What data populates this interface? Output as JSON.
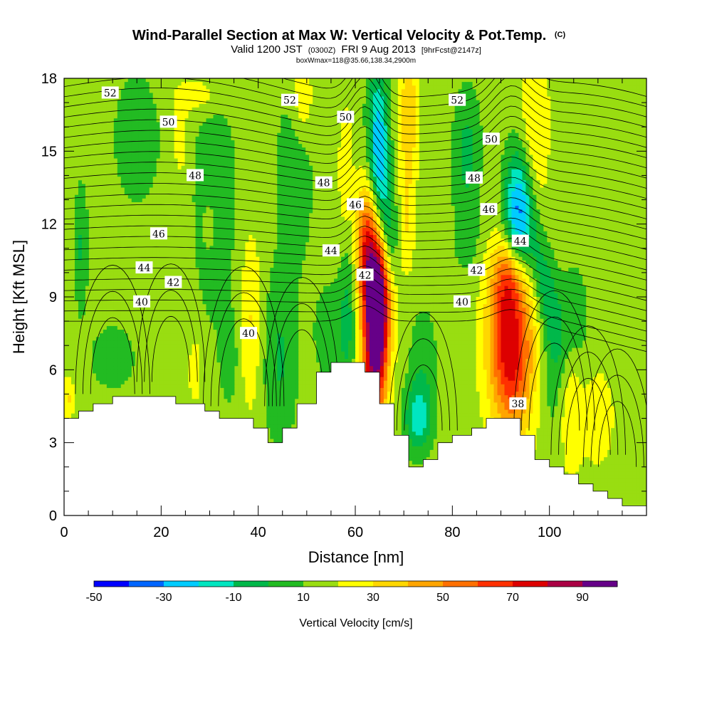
{
  "chart_data": {
    "type": "heatmap",
    "title": "Wind-Parallel Section at Max W: Vertical Velocity & Pot.Temp.",
    "title_mark": "(C)",
    "subtitle": {
      "valid": "Valid 1200 JST",
      "utc": "(0300Z)",
      "date": "FRI 9 Aug 2013",
      "forecast": "[9hrFcst@2147z]"
    },
    "subtitle2": "boxWmax=118@35.66,138.34,2900m",
    "xlabel": "Distance [nm]",
    "ylabel": "Height [Kft MSL]",
    "xlim": [
      0,
      120
    ],
    "ylim": [
      0,
      18
    ],
    "x_ticks": [
      "0",
      "20",
      "40",
      "60",
      "80",
      "100"
    ],
    "y_ticks": [
      "0",
      "3",
      "6",
      "9",
      "12",
      "15",
      "18"
    ],
    "colorbar": {
      "label": "Vertical Velocity [cm/s]",
      "tick_labels": [
        "-50",
        "-30",
        "-10",
        "10",
        "30",
        "50",
        "70",
        "90"
      ],
      "colors": [
        "#0000ff",
        "#0066ff",
        "#00ccff",
        "#00e6c0",
        "#00b84a",
        "#22bb22",
        "#99dd11",
        "#ffff00",
        "#ffd700",
        "#ffa500",
        "#ff7000",
        "#ff3000",
        "#dd0000",
        "#aa0044",
        "#660088"
      ]
    },
    "contour_labels": [
      {
        "text": "52",
        "x": 9.5,
        "y": 17.4
      },
      {
        "text": "52",
        "x": 46.5,
        "y": 17.1
      },
      {
        "text": "52",
        "x": 81.0,
        "y": 17.1
      },
      {
        "text": "50",
        "x": 21.5,
        "y": 16.2
      },
      {
        "text": "50",
        "x": 58.0,
        "y": 16.4
      },
      {
        "text": "50",
        "x": 88.0,
        "y": 15.5
      },
      {
        "text": "48",
        "x": 27.0,
        "y": 14.0
      },
      {
        "text": "48",
        "x": 53.5,
        "y": 13.7
      },
      {
        "text": "48",
        "x": 84.5,
        "y": 13.9
      },
      {
        "text": "46",
        "x": 19.5,
        "y": 11.6
      },
      {
        "text": "46",
        "x": 60.0,
        "y": 12.8
      },
      {
        "text": "46",
        "x": 87.5,
        "y": 12.6
      },
      {
        "text": "44",
        "x": 16.5,
        "y": 10.2
      },
      {
        "text": "44",
        "x": 55.0,
        "y": 10.9
      },
      {
        "text": "44",
        "x": 94.0,
        "y": 11.3
      },
      {
        "text": "42",
        "x": 22.5,
        "y": 9.6
      },
      {
        "text": "42",
        "x": 62.0,
        "y": 9.9
      },
      {
        "text": "42",
        "x": 85.0,
        "y": 10.1
      },
      {
        "text": "40",
        "x": 16.0,
        "y": 8.8
      },
      {
        "text": "40",
        "x": 38.0,
        "y": 7.5
      },
      {
        "text": "40",
        "x": 82.0,
        "y": 8.8
      },
      {
        "text": "38",
        "x": 93.5,
        "y": 4.6
      }
    ],
    "terrain": [
      [
        0,
        4.0
      ],
      [
        3,
        4.0
      ],
      [
        3,
        4.3
      ],
      [
        6,
        4.3
      ],
      [
        6,
        4.6
      ],
      [
        10,
        4.6
      ],
      [
        10,
        4.9
      ],
      [
        23,
        4.9
      ],
      [
        23,
        4.6
      ],
      [
        29,
        4.6
      ],
      [
        29,
        4.3
      ],
      [
        32,
        4.3
      ],
      [
        32,
        4.0
      ],
      [
        39,
        4.0
      ],
      [
        39,
        3.6
      ],
      [
        42,
        3.6
      ],
      [
        42,
        3.0
      ],
      [
        45,
        3.0
      ],
      [
        45,
        3.6
      ],
      [
        48,
        3.6
      ],
      [
        48,
        4.6
      ],
      [
        52,
        4.6
      ],
      [
        52,
        5.9
      ],
      [
        55,
        5.9
      ],
      [
        55,
        6.3
      ],
      [
        62,
        6.3
      ],
      [
        62,
        5.9
      ],
      [
        65,
        5.9
      ],
      [
        65,
        4.6
      ],
      [
        68,
        4.6
      ],
      [
        68,
        3.3
      ],
      [
        71,
        3.3
      ],
      [
        71,
        2.0
      ],
      [
        74,
        2.0
      ],
      [
        74,
        2.3
      ],
      [
        77,
        2.3
      ],
      [
        77,
        3.0
      ],
      [
        80,
        3.0
      ],
      [
        80,
        3.3
      ],
      [
        84,
        3.3
      ],
      [
        84,
        3.6
      ],
      [
        87,
        3.6
      ],
      [
        87,
        4.0
      ],
      [
        94,
        4.0
      ],
      [
        94,
        3.3
      ],
      [
        97,
        3.3
      ],
      [
        97,
        2.3
      ],
      [
        100,
        2.3
      ],
      [
        100,
        2.0
      ],
      [
        103,
        2.0
      ],
      [
        103,
        1.7
      ],
      [
        106,
        1.7
      ],
      [
        106,
        1.3
      ],
      [
        109,
        1.3
      ],
      [
        109,
        1.0
      ],
      [
        112,
        1.0
      ],
      [
        112,
        0.7
      ],
      [
        115,
        0.7
      ],
      [
        115,
        0.4
      ],
      [
        120,
        0.4
      ]
    ],
    "w_features": [
      {
        "x": 64.5,
        "y": 8.5,
        "sx": 1.8,
        "sy": 3.0,
        "amp": 115,
        "tilt": 0.15
      },
      {
        "x": 62.0,
        "y": 11.0,
        "sx": 1.5,
        "sy": 1.8,
        "amp": 40,
        "tilt": 0.0
      },
      {
        "x": 92.0,
        "y": 7.0,
        "sx": 3.2,
        "sy": 2.5,
        "amp": 65,
        "tilt": -0.05
      },
      {
        "x": 91.5,
        "y": 9.8,
        "sx": 2.2,
        "sy": 1.0,
        "amp": 25,
        "tilt": 0.0
      },
      {
        "x": 65.0,
        "y": 14.5,
        "sx": 1.5,
        "sy": 2.5,
        "amp": -55,
        "tilt": -0.12
      },
      {
        "x": 66.5,
        "y": 11.5,
        "sx": 1.6,
        "sy": 1.5,
        "amp": -35,
        "tilt": 0.0
      },
      {
        "x": 93.5,
        "y": 12.3,
        "sx": 2.0,
        "sy": 1.8,
        "amp": -50,
        "tilt": 0.0
      },
      {
        "x": 99.0,
        "y": 9.5,
        "sx": 1.8,
        "sy": 2.2,
        "amp": -22,
        "tilt": -0.9
      },
      {
        "x": 105.0,
        "y": 8.0,
        "sx": 2.0,
        "sy": 1.6,
        "amp": -14,
        "tilt": 0.0
      },
      {
        "x": 71.0,
        "y": 16.5,
        "sx": 1.3,
        "sy": 2.0,
        "amp": 25,
        "tilt": 0.0
      },
      {
        "x": 70.5,
        "y": 12.0,
        "sx": 1.2,
        "sy": 1.5,
        "amp": 15,
        "tilt": 0.0
      },
      {
        "x": 83.0,
        "y": 15.0,
        "sx": 2.0,
        "sy": 1.8,
        "amp": -18,
        "tilt": 0.0
      },
      {
        "x": 83.0,
        "y": 11.5,
        "sx": 2.0,
        "sy": 1.2,
        "amp": -10,
        "tilt": 0.0
      },
      {
        "x": 58.5,
        "y": 8.5,
        "sx": 1.2,
        "sy": 2.5,
        "amp": -16,
        "tilt": 0.0
      },
      {
        "x": 49.0,
        "y": 17.0,
        "sx": 1.6,
        "sy": 1.3,
        "amp": 16,
        "tilt": 0.0
      },
      {
        "x": 47.5,
        "y": 14.0,
        "sx": 2.5,
        "sy": 2.5,
        "amp": -15,
        "tilt": 0.0
      },
      {
        "x": 58.0,
        "y": 14.0,
        "sx": 1.0,
        "sy": 2.0,
        "amp": 14,
        "tilt": 0.0
      },
      {
        "x": 38.5,
        "y": 8.0,
        "sx": 1.5,
        "sy": 2.5,
        "amp": 16,
        "tilt": 0.0
      },
      {
        "x": 44.5,
        "y": 6.5,
        "sx": 2.5,
        "sy": 2.5,
        "amp": -16,
        "tilt": 0.0
      },
      {
        "x": 55.0,
        "y": 7.5,
        "sx": 2.5,
        "sy": 1.5,
        "amp": -12,
        "tilt": 0.0
      },
      {
        "x": 73.0,
        "y": 4.0,
        "sx": 2.0,
        "sy": 1.0,
        "amp": -30,
        "tilt": 0.0
      },
      {
        "x": 74.0,
        "y": 6.5,
        "sx": 2.0,
        "sy": 1.5,
        "amp": -12,
        "tilt": 0.0
      },
      {
        "x": 104.5,
        "y": 4.5,
        "sx": 1.5,
        "sy": 2.0,
        "amp": 15,
        "tilt": 0.0
      },
      {
        "x": 31.0,
        "y": 13.0,
        "sx": 3.0,
        "sy": 3.5,
        "amp": -14,
        "tilt": 0.0
      },
      {
        "x": 24.0,
        "y": 15.5,
        "sx": 1.0,
        "sy": 1.0,
        "amp": 13,
        "tilt": 0.0
      },
      {
        "x": 30.0,
        "y": 12.0,
        "sx": 1.0,
        "sy": 0.8,
        "amp": 13,
        "tilt": 0.0
      },
      {
        "x": 28.5,
        "y": 17.3,
        "sx": 4.0,
        "sy": 0.6,
        "amp": 12,
        "tilt": 0.0
      },
      {
        "x": 15.0,
        "y": 15.5,
        "sx": 3.5,
        "sy": 2.0,
        "amp": -12,
        "tilt": 0.0
      },
      {
        "x": 3.5,
        "y": 11.0,
        "sx": 1.0,
        "sy": 1.8,
        "amp": -16,
        "tilt": 0.0
      },
      {
        "x": 10.0,
        "y": 6.5,
        "sx": 3.5,
        "sy": 1.0,
        "amp": -11,
        "tilt": 0.0
      },
      {
        "x": 0.8,
        "y": 4.8,
        "sx": 1.0,
        "sy": 0.6,
        "amp": 16,
        "tilt": 0.0
      },
      {
        "x": 27.0,
        "y": 6.0,
        "sx": 1.0,
        "sy": 1.0,
        "amp": 12,
        "tilt": 0.0
      },
      {
        "x": 34.0,
        "y": 6.5,
        "sx": 1.3,
        "sy": 1.3,
        "amp": -12,
        "tilt": 0.0
      },
      {
        "x": 110.0,
        "y": 4.0,
        "sx": 2.5,
        "sy": 1.5,
        "amp": 11,
        "tilt": 0.0
      },
      {
        "x": 97.0,
        "y": 16.0,
        "sx": 2.0,
        "sy": 2.5,
        "amp": 16,
        "tilt": 0.0
      },
      {
        "x": 100.5,
        "y": 6.0,
        "sx": 1.5,
        "sy": 2.0,
        "amp": -10,
        "tilt": 0.0
      }
    ],
    "w_background": 5
  }
}
